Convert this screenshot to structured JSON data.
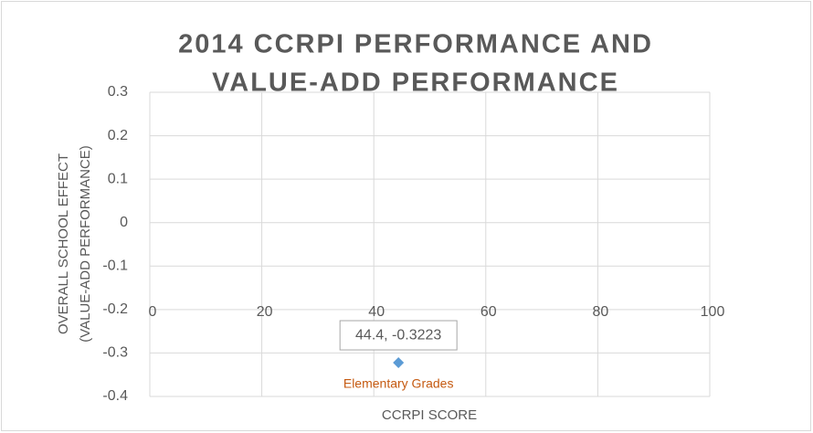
{
  "chart_data": {
    "type": "scatter",
    "title": [
      "2014 CCRPI PERFORMANCE AND",
      "VALUE-ADD PERFORMANCE"
    ],
    "xlabel": "CCRPI SCORE",
    "ylabel": [
      "OVERALL SCHOOL EFFECT",
      "(VALUE-ADD PERFORMANCE)"
    ],
    "series": [
      {
        "name": "Elementary Grades",
        "color": "#5b9bd5",
        "x": [
          44.4
        ],
        "values": [
          -0.3223
        ],
        "value_labels": [
          "44.4, -0.3223"
        ]
      }
    ],
    "xlim": [
      0,
      100
    ],
    "xticks": [
      0,
      20,
      40,
      60,
      80,
      100
    ],
    "ylim": [
      -0.4,
      0.3
    ],
    "yticks": [
      -0.4,
      -0.3,
      -0.2,
      -0.1,
      0,
      0.1,
      0.2,
      0.3
    ],
    "grid": true
  }
}
